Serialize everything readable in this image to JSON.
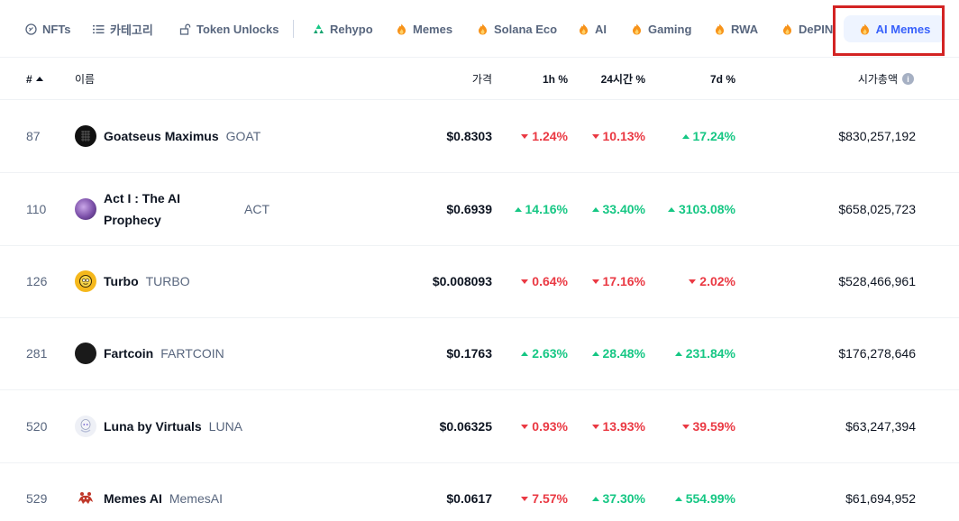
{
  "filters": {
    "items": [
      {
        "label": "NFTs",
        "icon": "nft-icon"
      },
      {
        "label": "카테고리",
        "icon": "list-icon"
      },
      {
        "label": "Token Unlocks",
        "icon": "unlock-icon"
      },
      {
        "label": "Rehypo",
        "icon": "recycle-icon"
      },
      {
        "label": "Memes",
        "icon": "fire-icon"
      },
      {
        "label": "Solana Eco",
        "icon": "fire-icon"
      },
      {
        "label": "AI",
        "icon": "fire-icon"
      },
      {
        "label": "Gaming",
        "icon": "fire-icon"
      },
      {
        "label": "RWA",
        "icon": "fire-icon"
      },
      {
        "label": "DePIN",
        "icon": "fire-icon"
      },
      {
        "label": "AI Memes",
        "icon": "fire-icon",
        "active": true
      }
    ]
  },
  "table": {
    "headers": {
      "rank": "#",
      "name": "이름",
      "price": "가격",
      "change_1h": "1h %",
      "change_24h": "24시간 %",
      "change_7d": "7d %",
      "market_cap": "시가총액"
    },
    "rows": [
      {
        "rank": "87",
        "name": "Goatseus Maximus",
        "symbol": "GOAT",
        "price": "$0.8303",
        "change_1h": "1.24%",
        "dir_1h": "down",
        "change_24h": "10.13%",
        "dir_24h": "down",
        "change_7d": "17.24%",
        "dir_7d": "up",
        "market_cap": "$830,257,192"
      },
      {
        "rank": "110",
        "name": "Act I : The AI Prophecy",
        "symbol": "ACT",
        "price": "$0.6939",
        "change_1h": "14.16%",
        "dir_1h": "up",
        "change_24h": "33.40%",
        "dir_24h": "up",
        "change_7d": "3103.08%",
        "dir_7d": "up",
        "market_cap": "$658,025,723"
      },
      {
        "rank": "126",
        "name": "Turbo",
        "symbol": "TURBO",
        "price": "$0.008093",
        "change_1h": "0.64%",
        "dir_1h": "down",
        "change_24h": "17.16%",
        "dir_24h": "down",
        "change_7d": "2.02%",
        "dir_7d": "down",
        "market_cap": "$528,466,961"
      },
      {
        "rank": "281",
        "name": "Fartcoin",
        "symbol": "FARTCOIN",
        "price": "$0.1763",
        "change_1h": "2.63%",
        "dir_1h": "up",
        "change_24h": "28.48%",
        "dir_24h": "up",
        "change_7d": "231.84%",
        "dir_7d": "up",
        "market_cap": "$176,278,646"
      },
      {
        "rank": "520",
        "name": "Luna by Virtuals",
        "symbol": "LUNA",
        "price": "$0.06325",
        "change_1h": "0.93%",
        "dir_1h": "down",
        "change_24h": "13.93%",
        "dir_24h": "down",
        "change_7d": "39.59%",
        "dir_7d": "down",
        "market_cap": "$63,247,394"
      },
      {
        "rank": "529",
        "name": "Memes AI",
        "symbol": "MemesAI",
        "price": "$0.0617",
        "change_1h": "7.57%",
        "dir_1h": "down",
        "change_24h": "37.30%",
        "dir_24h": "up",
        "change_7d": "554.99%",
        "dir_7d": "up",
        "market_cap": "$61,694,952"
      }
    ]
  },
  "colors": {
    "up": "#16c784",
    "down": "#ea3943",
    "accent": "#3861fb",
    "highlight": "#d32323"
  }
}
